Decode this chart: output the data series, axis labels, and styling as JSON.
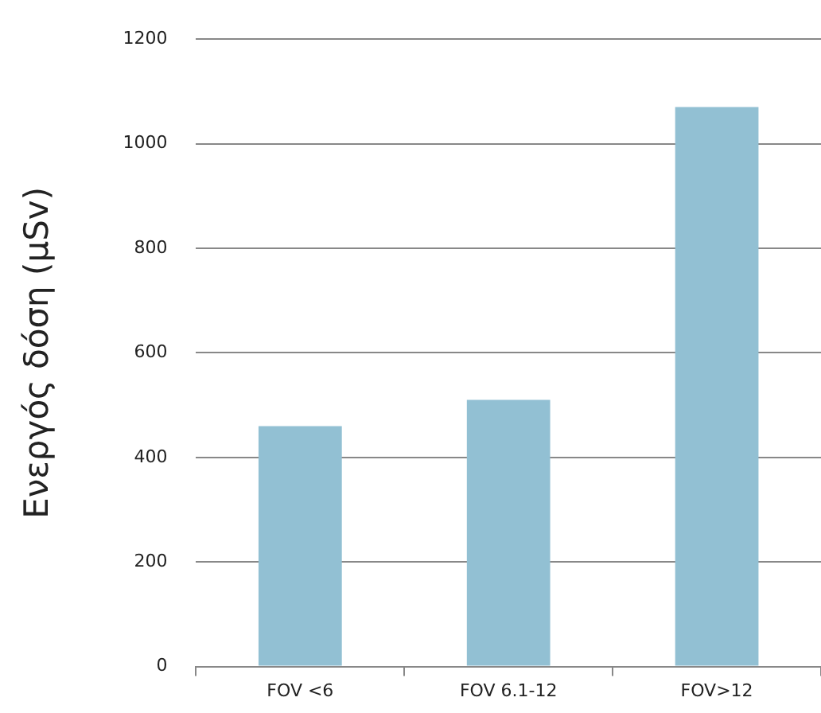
{
  "chart_data": {
    "type": "bar",
    "ylabel": "Ενεργός δόση (μSv)",
    "categories": [
      "FOV <6",
      "FOV 6.1-12",
      "FOV>12"
    ],
    "values": [
      460,
      510,
      1070
    ],
    "color": "#92c0d3",
    "ylim": [
      0,
      1200
    ],
    "yticks": [
      0,
      200,
      400,
      600,
      800,
      1000,
      1200
    ],
    "grid": "y",
    "legend": false
  }
}
